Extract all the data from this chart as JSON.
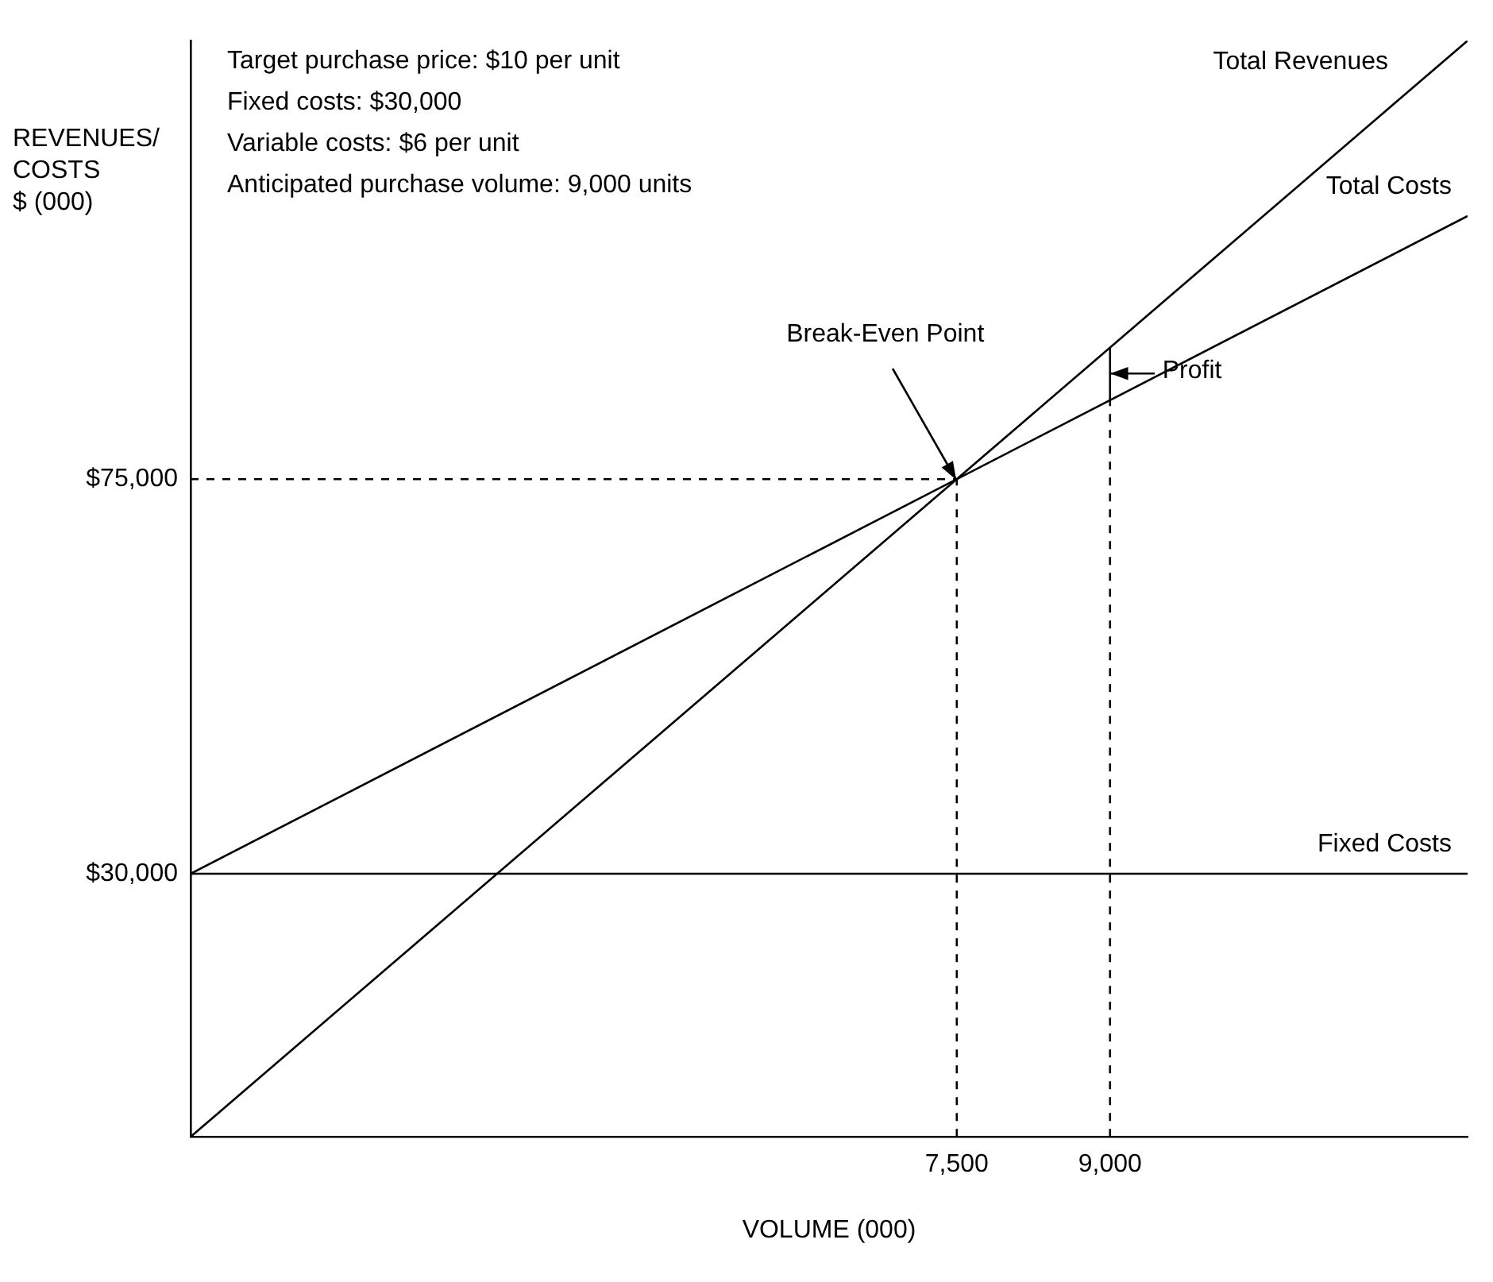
{
  "chart_data": {
    "type": "line",
    "xlabel": "VOLUME (000)",
    "ylabel": "REVENUES/\nCOSTS\n$ (000)",
    "xlim": [
      0,
      12500
    ],
    "ylim": [
      0,
      125000
    ],
    "xticks": [
      {
        "value": 7500,
        "label": "7,500"
      },
      {
        "value": 9000,
        "label": "9,000"
      }
    ],
    "yticks": [
      {
        "value": 30000,
        "label": "$30,000"
      },
      {
        "value": 75000,
        "label": "$75,000"
      }
    ],
    "grid": false,
    "legend": false,
    "marker": "none",
    "series": [
      {
        "name": "Total Revenues",
        "color": "#000000",
        "x": [
          0,
          12500
        ],
        "values": [
          0,
          125000
        ]
      },
      {
        "name": "Total Costs",
        "color": "#000000",
        "x": [
          0,
          12500
        ],
        "values": [
          30000,
          105000
        ]
      },
      {
        "name": "Fixed Costs",
        "color": "#000000",
        "x": [
          0,
          12500
        ],
        "values": [
          30000,
          30000
        ]
      },
      {
        "color": "#000000",
        "line_style": "dashed",
        "x": [
          0,
          7500
        ],
        "values": [
          75000,
          75000
        ]
      },
      {
        "color": "#000000",
        "line_style": "dashed",
        "x": [
          7500,
          7500
        ],
        "values": [
          0,
          75000
        ]
      },
      {
        "color": "#000000",
        "line_style": "dashed",
        "x": [
          9000,
          9000
        ],
        "values": [
          0,
          84000
        ]
      },
      {
        "color": "#000000",
        "line_style": "solid",
        "x": [
          9000,
          9000
        ],
        "values": [
          84000,
          90000
        ]
      }
    ],
    "annotations": [
      "Target purchase price: $10 per unit",
      "Fixed costs: $30,000",
      "Variable costs: $6 per unit",
      "Anticipated purchase volume: 9,000 units",
      {
        "text": "Break-Even Point",
        "x": 7500,
        "y": 75000
      },
      {
        "text": "Profit",
        "x": 9000,
        "y": 87000
      }
    ]
  }
}
